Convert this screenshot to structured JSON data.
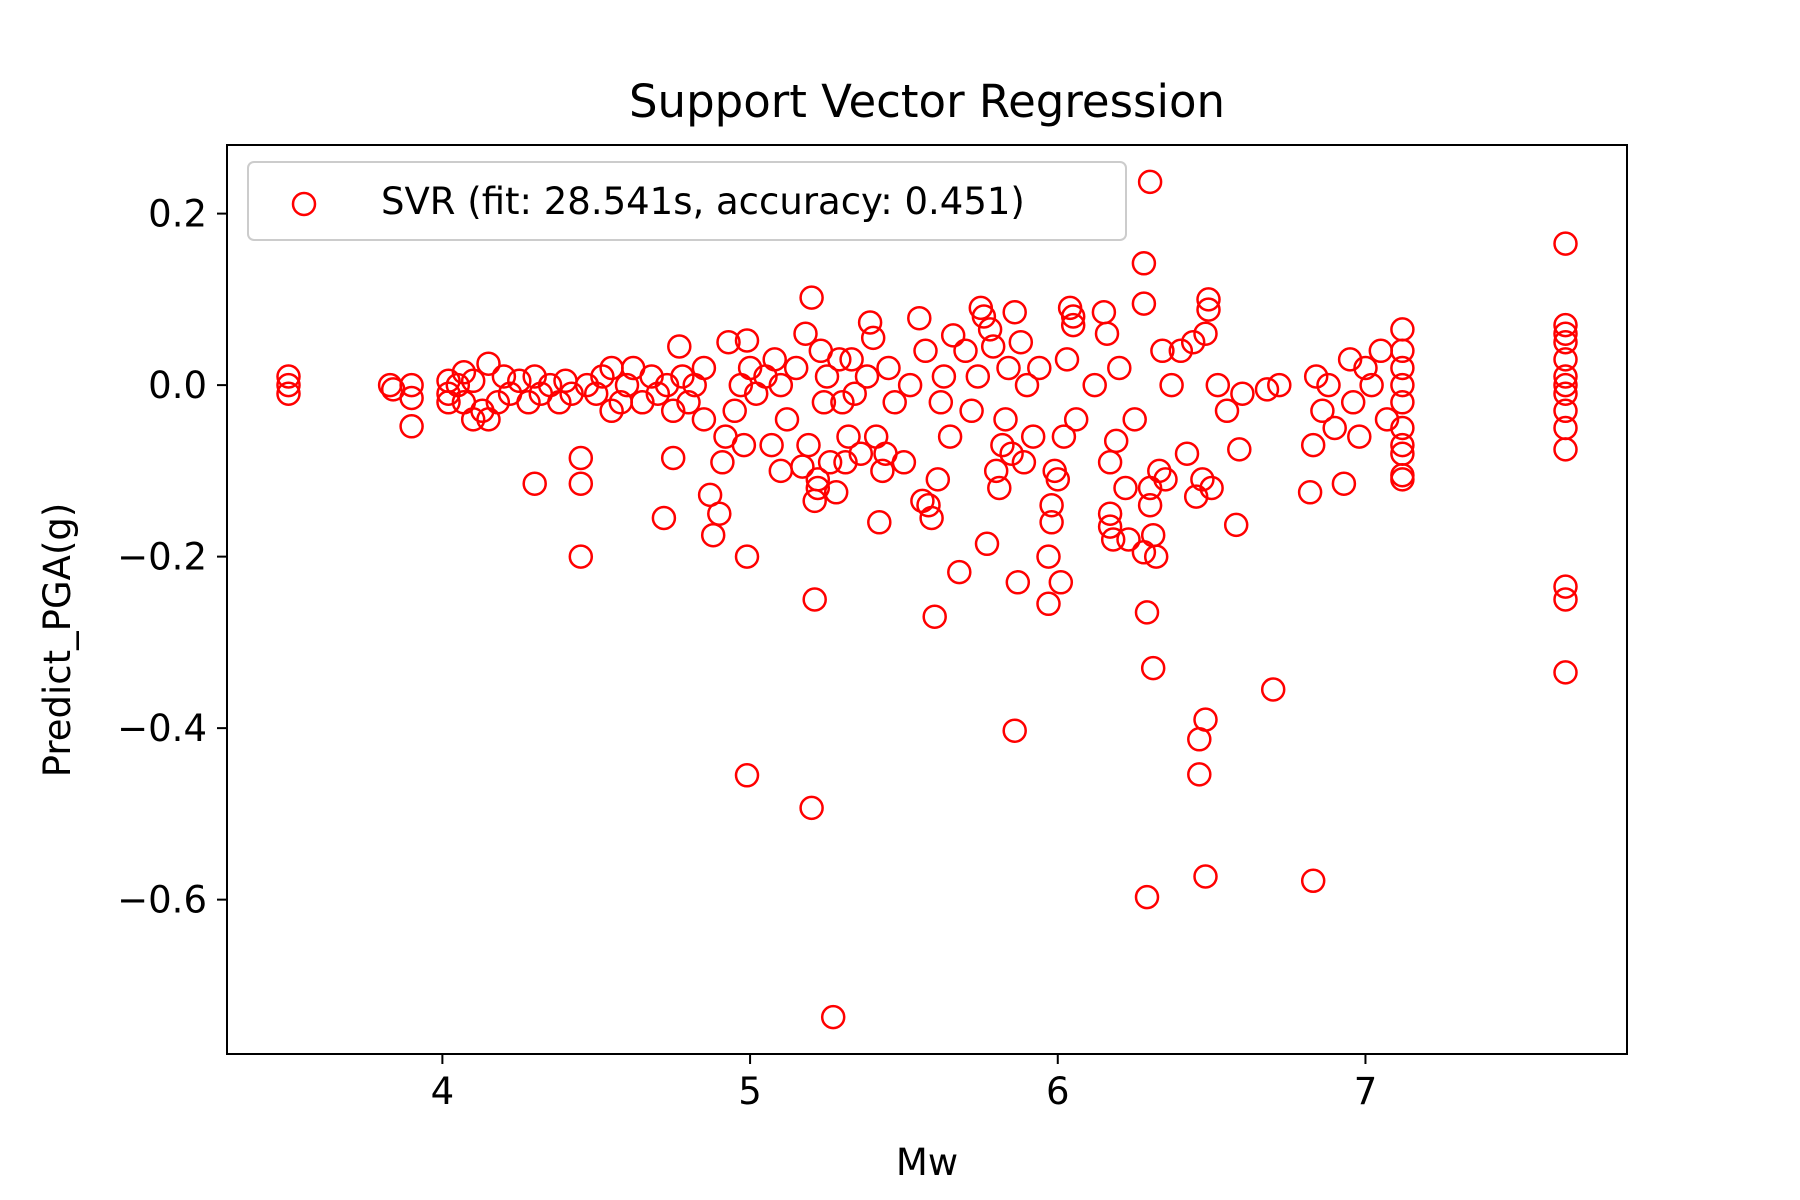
{
  "chart_data": {
    "type": "scatter",
    "title": "Support Vector Regression",
    "xlabel": "Mw",
    "ylabel": "Predict_PGA(g)",
    "xlim": [
      3.3,
      7.85
    ],
    "ylim": [
      -0.78,
      0.28
    ],
    "xticks": [
      {
        "value": 4,
        "label": "4"
      },
      {
        "value": 5,
        "label": "5"
      },
      {
        "value": 6,
        "label": "6"
      },
      {
        "value": 7,
        "label": "7"
      }
    ],
    "yticks": [
      {
        "value": 0.2,
        "label": "0.2"
      },
      {
        "value": 0.0,
        "label": "0.0"
      },
      {
        "value": -0.2,
        "label": "−0.2"
      },
      {
        "value": -0.4,
        "label": "−0.4"
      },
      {
        "value": -0.6,
        "label": "−0.6"
      }
    ],
    "grid": false,
    "legend_position": "top-left",
    "marker": "hollow-circle",
    "color": "#ff0000",
    "series": [
      {
        "name": "SVR (fit: 28.541s, accuracy: 0.451)",
        "color": "#ff0000",
        "points": [
          [
            3.5,
            0.01
          ],
          [
            3.5,
            0.0
          ],
          [
            3.5,
            -0.01
          ],
          [
            3.83,
            0.0
          ],
          [
            3.84,
            -0.005
          ],
          [
            3.9,
            0.0
          ],
          [
            3.9,
            -0.015
          ],
          [
            3.9,
            -0.048
          ],
          [
            4.02,
            0.005
          ],
          [
            4.02,
            -0.01
          ],
          [
            4.02,
            -0.02
          ],
          [
            4.05,
            0.0
          ],
          [
            4.07,
            0.015
          ],
          [
            4.07,
            -0.02
          ],
          [
            4.1,
            -0.04
          ],
          [
            4.1,
            0.005
          ],
          [
            4.13,
            -0.03
          ],
          [
            4.15,
            0.025
          ],
          [
            4.15,
            -0.04
          ],
          [
            4.18,
            -0.02
          ],
          [
            4.2,
            0.01
          ],
          [
            4.22,
            -0.01
          ],
          [
            4.25,
            0.005
          ],
          [
            4.28,
            -0.02
          ],
          [
            4.3,
            -0.115
          ],
          [
            4.3,
            0.01
          ],
          [
            4.32,
            -0.01
          ],
          [
            4.35,
            0.0
          ],
          [
            4.38,
            -0.02
          ],
          [
            4.4,
            0.005
          ],
          [
            4.42,
            -0.01
          ],
          [
            4.45,
            -0.085
          ],
          [
            4.45,
            -0.115
          ],
          [
            4.45,
            -0.2
          ],
          [
            4.47,
            0.0
          ],
          [
            4.5,
            -0.01
          ],
          [
            4.52,
            0.01
          ],
          [
            4.55,
            0.02
          ],
          [
            4.55,
            -0.03
          ],
          [
            4.58,
            -0.02
          ],
          [
            4.6,
            0.0
          ],
          [
            4.62,
            0.02
          ],
          [
            4.65,
            -0.02
          ],
          [
            4.68,
            0.01
          ],
          [
            4.7,
            -0.01
          ],
          [
            4.72,
            -0.155
          ],
          [
            4.75,
            -0.085
          ],
          [
            4.73,
            0.0
          ],
          [
            4.75,
            -0.03
          ],
          [
            4.77,
            0.045
          ],
          [
            4.78,
            0.01
          ],
          [
            4.8,
            -0.02
          ],
          [
            4.82,
            0.0
          ],
          [
            4.85,
            0.02
          ],
          [
            4.85,
            -0.04
          ],
          [
            4.87,
            -0.128
          ],
          [
            4.88,
            -0.175
          ],
          [
            4.9,
            -0.15
          ],
          [
            4.91,
            -0.09
          ],
          [
            4.92,
            -0.06
          ],
          [
            4.93,
            0.05
          ],
          [
            4.95,
            -0.03
          ],
          [
            4.97,
            0.0
          ],
          [
            4.99,
            0.052
          ],
          [
            4.99,
            -0.2
          ],
          [
            4.99,
            -0.455
          ],
          [
            4.98,
            -0.07
          ],
          [
            5.0,
            0.02
          ],
          [
            5.02,
            -0.01
          ],
          [
            5.05,
            0.01
          ],
          [
            5.07,
            -0.07
          ],
          [
            5.08,
            0.03
          ],
          [
            5.1,
            -0.1
          ],
          [
            5.1,
            0.0
          ],
          [
            5.12,
            -0.04
          ],
          [
            5.15,
            0.02
          ],
          [
            5.17,
            -0.095
          ],
          [
            5.18,
            0.06
          ],
          [
            5.19,
            -0.07
          ],
          [
            5.2,
            0.102
          ],
          [
            5.21,
            -0.25
          ],
          [
            5.2,
            -0.493
          ],
          [
            5.21,
            -0.135
          ],
          [
            5.22,
            -0.12
          ],
          [
            5.22,
            -0.11
          ],
          [
            5.23,
            0.04
          ],
          [
            5.24,
            -0.02
          ],
          [
            5.25,
            0.01
          ],
          [
            5.26,
            -0.09
          ],
          [
            5.27,
            -0.737
          ],
          [
            5.28,
            -0.125
          ],
          [
            5.29,
            0.03
          ],
          [
            5.3,
            -0.02
          ],
          [
            5.31,
            -0.09
          ],
          [
            5.32,
            -0.06
          ],
          [
            5.33,
            0.03
          ],
          [
            5.34,
            -0.01
          ],
          [
            5.36,
            -0.08
          ],
          [
            5.38,
            0.01
          ],
          [
            5.39,
            0.073
          ],
          [
            5.4,
            0.055
          ],
          [
            5.41,
            -0.06
          ],
          [
            5.42,
            -0.16
          ],
          [
            5.43,
            -0.1
          ],
          [
            5.44,
            -0.08
          ],
          [
            5.45,
            0.02
          ],
          [
            5.47,
            -0.02
          ],
          [
            5.5,
            -0.09
          ],
          [
            5.52,
            0.0
          ],
          [
            5.55,
            0.078
          ],
          [
            5.56,
            -0.135
          ],
          [
            5.57,
            0.04
          ],
          [
            5.58,
            -0.14
          ],
          [
            5.59,
            -0.155
          ],
          [
            5.6,
            -0.27
          ],
          [
            5.61,
            -0.11
          ],
          [
            5.62,
            -0.02
          ],
          [
            5.63,
            0.01
          ],
          [
            5.65,
            -0.06
          ],
          [
            5.66,
            0.058
          ],
          [
            5.68,
            -0.218
          ],
          [
            5.7,
            0.04
          ],
          [
            5.72,
            -0.03
          ],
          [
            5.74,
            0.01
          ],
          [
            5.75,
            0.09
          ],
          [
            5.76,
            0.08
          ],
          [
            5.77,
            -0.185
          ],
          [
            5.78,
            0.065
          ],
          [
            5.79,
            0.045
          ],
          [
            5.8,
            -0.1
          ],
          [
            5.81,
            -0.12
          ],
          [
            5.82,
            -0.07
          ],
          [
            5.83,
            -0.04
          ],
          [
            5.84,
            0.02
          ],
          [
            5.85,
            -0.08
          ],
          [
            5.86,
            0.085
          ],
          [
            5.87,
            -0.23
          ],
          [
            5.86,
            -0.403
          ],
          [
            5.88,
            0.05
          ],
          [
            5.89,
            -0.09
          ],
          [
            5.9,
            0.0
          ],
          [
            5.92,
            -0.06
          ],
          [
            5.94,
            0.02
          ],
          [
            5.97,
            -0.2
          ],
          [
            5.97,
            -0.255
          ],
          [
            5.98,
            -0.14
          ],
          [
            5.98,
            -0.16
          ],
          [
            5.99,
            -0.1
          ],
          [
            6.0,
            -0.11
          ],
          [
            6.01,
            -0.23
          ],
          [
            6.02,
            -0.06
          ],
          [
            6.03,
            0.03
          ],
          [
            6.04,
            0.09
          ],
          [
            6.05,
            0.07
          ],
          [
            6.05,
            0.08
          ],
          [
            6.06,
            -0.04
          ],
          [
            6.12,
            0.0
          ],
          [
            6.15,
            0.085
          ],
          [
            6.16,
            0.06
          ],
          [
            6.17,
            -0.09
          ],
          [
            6.17,
            -0.15
          ],
          [
            6.17,
            -0.165
          ],
          [
            6.18,
            -0.18
          ],
          [
            6.19,
            -0.065
          ],
          [
            6.2,
            0.02
          ],
          [
            6.22,
            -0.12
          ],
          [
            6.23,
            -0.18
          ],
          [
            6.25,
            -0.04
          ],
          [
            6.28,
            0.142
          ],
          [
            6.28,
            0.095
          ],
          [
            6.28,
            -0.195
          ],
          [
            6.29,
            -0.265
          ],
          [
            6.29,
            -0.597
          ],
          [
            6.3,
            0.237
          ],
          [
            6.3,
            -0.12
          ],
          [
            6.3,
            -0.14
          ],
          [
            6.31,
            -0.175
          ],
          [
            6.31,
            -0.33
          ],
          [
            6.32,
            -0.2
          ],
          [
            6.33,
            -0.1
          ],
          [
            6.34,
            0.04
          ],
          [
            6.35,
            -0.11
          ],
          [
            6.37,
            0.0
          ],
          [
            6.4,
            0.04
          ],
          [
            6.42,
            -0.08
          ],
          [
            6.44,
            0.05
          ],
          [
            6.45,
            -0.13
          ],
          [
            6.46,
            -0.413
          ],
          [
            6.46,
            -0.454
          ],
          [
            6.47,
            -0.11
          ],
          [
            6.48,
            -0.39
          ],
          [
            6.48,
            0.06
          ],
          [
            6.49,
            0.1
          ],
          [
            6.49,
            0.088
          ],
          [
            6.48,
            -0.573
          ],
          [
            6.5,
            -0.12
          ],
          [
            6.52,
            0.0
          ],
          [
            6.55,
            -0.03
          ],
          [
            6.58,
            -0.163
          ],
          [
            6.59,
            -0.075
          ],
          [
            6.6,
            -0.01
          ],
          [
            6.68,
            -0.005
          ],
          [
            6.7,
            -0.355
          ],
          [
            6.72,
            0.0
          ],
          [
            6.82,
            -0.125
          ],
          [
            6.83,
            -0.578
          ],
          [
            6.83,
            -0.07
          ],
          [
            6.84,
            0.01
          ],
          [
            6.86,
            -0.03
          ],
          [
            6.88,
            0.0
          ],
          [
            6.9,
            -0.05
          ],
          [
            6.93,
            -0.115
          ],
          [
            6.95,
            0.03
          ],
          [
            6.96,
            -0.02
          ],
          [
            6.98,
            -0.06
          ],
          [
            7.0,
            0.02
          ],
          [
            7.02,
            0.0
          ],
          [
            7.05,
            0.04
          ],
          [
            7.07,
            -0.04
          ],
          [
            7.12,
            0.065
          ],
          [
            7.12,
            0.04
          ],
          [
            7.12,
            0.0
          ],
          [
            7.12,
            -0.02
          ],
          [
            7.12,
            -0.05
          ],
          [
            7.12,
            -0.08
          ],
          [
            7.12,
            -0.105
          ],
          [
            7.12,
            -0.11
          ],
          [
            7.12,
            0.02
          ],
          [
            7.12,
            -0.07
          ],
          [
            7.65,
            0.165
          ],
          [
            7.65,
            0.07
          ],
          [
            7.65,
            0.06
          ],
          [
            7.65,
            0.05
          ],
          [
            7.65,
            0.03
          ],
          [
            7.65,
            0.01
          ],
          [
            7.65,
            0.0
          ],
          [
            7.65,
            -0.01
          ],
          [
            7.65,
            -0.03
          ],
          [
            7.65,
            -0.05
          ],
          [
            7.65,
            -0.075
          ],
          [
            7.65,
            -0.235
          ],
          [
            7.65,
            -0.25
          ],
          [
            7.65,
            -0.335
          ]
        ]
      }
    ]
  }
}
